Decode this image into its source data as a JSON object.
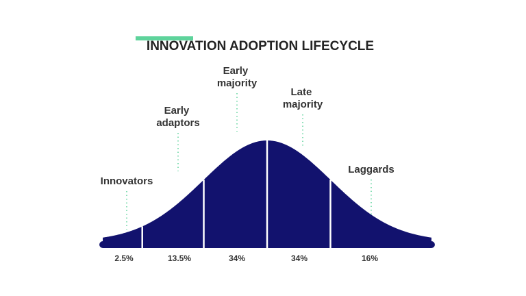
{
  "chart_data": {
    "type": "bell",
    "title": "INNOVATION ADOPTION LIFECYCLE",
    "categories": [
      "Innovators",
      "Early adaptors",
      "Early majority",
      "Late majority",
      "Laggards"
    ],
    "values": [
      2.5,
      13.5,
      34,
      34,
      16
    ],
    "value_labels": [
      "2.5%",
      "13.5%",
      "34%",
      "34%",
      "16%"
    ],
    "color": "#12126e"
  }
}
